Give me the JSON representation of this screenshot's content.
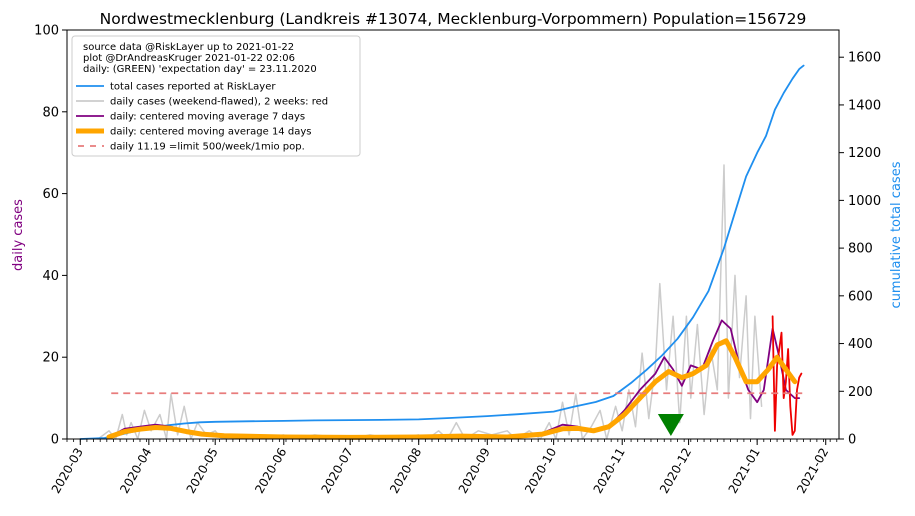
{
  "chart_data": {
    "type": "line",
    "title": "Nordwestmecklenburg (Landkreis #13074, Mecklenburg-Vorpommern) Population=156729",
    "ylabel_left": "daily cases",
    "ylabel_right": "cumulative total cases",
    "ylim_left": [
      0,
      100
    ],
    "ylim_right": [
      0,
      1714
    ],
    "yticks_left": [
      0,
      20,
      40,
      60,
      80,
      100
    ],
    "yticks_right": [
      0,
      200,
      400,
      600,
      800,
      1000,
      1200,
      1400,
      1600
    ],
    "x_tick_labels": [
      "2020-03",
      "2020-04",
      "2020-05",
      "2020-06",
      "2020-07",
      "2020-08",
      "2020-09",
      "2020-10",
      "2020-11",
      "2020-12",
      "2021-01",
      "2021-02"
    ],
    "x_tick_dates": [
      "2020-03-01",
      "2020-04-01",
      "2020-05-01",
      "2020-06-01",
      "2020-07-01",
      "2020-08-01",
      "2020-09-01",
      "2020-10-01",
      "2020-11-01",
      "2020-12-01",
      "2021-01-01",
      "2021-02-01"
    ],
    "xlim": [
      "2020-02-24",
      "2021-02-07"
    ],
    "legend_position": "top-left",
    "legend_info": [
      "source data @RiskLayer up to 2021-01-22",
      "plot @DrAndreasKruger 2021-01-22 02:06",
      "daily: (GREEN) 'expectation day' = 23.11.2020"
    ],
    "expectation_day": "2020-11-23",
    "limit_value": 11.19,
    "limit_range": [
      "2020-03-15",
      "2021-01-22"
    ],
    "series": [
      {
        "name": "total cases reported at RiskLayer",
        "axis": "right",
        "color": "#1f8fef",
        "width": 1.8,
        "points": [
          [
            "2020-03-01",
            0
          ],
          [
            "2020-03-12",
            4
          ],
          [
            "2020-03-20",
            20
          ],
          [
            "2020-03-27",
            35
          ],
          [
            "2020-04-03",
            48
          ],
          [
            "2020-04-10",
            58
          ],
          [
            "2020-04-17",
            65
          ],
          [
            "2020-04-24",
            70
          ],
          [
            "2020-05-01",
            72
          ],
          [
            "2020-05-15",
            74
          ],
          [
            "2020-06-01",
            76
          ],
          [
            "2020-06-15",
            78
          ],
          [
            "2020-07-01",
            79
          ],
          [
            "2020-07-15",
            80
          ],
          [
            "2020-08-01",
            82
          ],
          [
            "2020-08-15",
            88
          ],
          [
            "2020-09-01",
            96
          ],
          [
            "2020-09-15",
            104
          ],
          [
            "2020-10-01",
            115
          ],
          [
            "2020-10-10",
            135
          ],
          [
            "2020-10-20",
            155
          ],
          [
            "2020-10-28",
            180
          ],
          [
            "2020-11-05",
            235
          ],
          [
            "2020-11-12",
            290
          ],
          [
            "2020-11-19",
            350
          ],
          [
            "2020-11-26",
            420
          ],
          [
            "2020-12-03",
            510
          ],
          [
            "2020-12-10",
            620
          ],
          [
            "2020-12-17",
            800
          ],
          [
            "2020-12-22",
            950
          ],
          [
            "2020-12-27",
            1100
          ],
          [
            "2021-01-01",
            1200
          ],
          [
            "2021-01-05",
            1270
          ],
          [
            "2021-01-09",
            1380
          ],
          [
            "2021-01-13",
            1450
          ],
          [
            "2021-01-17",
            1510
          ],
          [
            "2021-01-20",
            1550
          ],
          [
            "2021-01-22",
            1565
          ]
        ]
      },
      {
        "name": "daily cases (weekend-flawed), 2 weeks: red",
        "axis": "left",
        "color": "#cccccc",
        "width": 1.5,
        "points": [
          [
            "2020-03-09",
            0
          ],
          [
            "2020-03-14",
            2
          ],
          [
            "2020-03-17",
            0
          ],
          [
            "2020-03-20",
            6
          ],
          [
            "2020-03-22",
            1
          ],
          [
            "2020-03-24",
            4
          ],
          [
            "2020-03-27",
            0
          ],
          [
            "2020-03-30",
            7
          ],
          [
            "2020-04-02",
            2
          ],
          [
            "2020-04-06",
            6
          ],
          [
            "2020-04-09",
            0
          ],
          [
            "2020-04-11",
            11
          ],
          [
            "2020-04-14",
            1
          ],
          [
            "2020-04-17",
            8
          ],
          [
            "2020-04-20",
            0
          ],
          [
            "2020-04-23",
            4
          ],
          [
            "2020-04-27",
            1
          ],
          [
            "2020-05-01",
            2
          ],
          [
            "2020-05-04",
            0
          ],
          [
            "2020-05-10",
            1
          ],
          [
            "2020-05-20",
            0
          ],
          [
            "2020-06-01",
            1
          ],
          [
            "2020-06-05",
            0
          ],
          [
            "2020-06-15",
            1
          ],
          [
            "2020-07-01",
            0
          ],
          [
            "2020-07-10",
            1
          ],
          [
            "2020-07-20",
            0
          ],
          [
            "2020-08-01",
            1
          ],
          [
            "2020-08-05",
            0
          ],
          [
            "2020-08-10",
            2
          ],
          [
            "2020-08-14",
            0
          ],
          [
            "2020-08-18",
            4
          ],
          [
            "2020-08-22",
            0
          ],
          [
            "2020-08-28",
            2
          ],
          [
            "2020-09-03",
            1
          ],
          [
            "2020-09-10",
            2
          ],
          [
            "2020-09-14",
            0
          ],
          [
            "2020-09-20",
            2
          ],
          [
            "2020-09-25",
            0
          ],
          [
            "2020-09-29",
            4
          ],
          [
            "2020-10-02",
            0
          ],
          [
            "2020-10-05",
            9
          ],
          [
            "2020-10-08",
            1
          ],
          [
            "2020-10-11",
            11
          ],
          [
            "2020-10-14",
            0
          ],
          [
            "2020-10-18",
            3
          ],
          [
            "2020-10-22",
            7
          ],
          [
            "2020-10-25",
            0
          ],
          [
            "2020-10-29",
            8
          ],
          [
            "2020-11-01",
            2
          ],
          [
            "2020-11-04",
            12
          ],
          [
            "2020-11-07",
            3
          ],
          [
            "2020-11-10",
            21
          ],
          [
            "2020-11-13",
            5
          ],
          [
            "2020-11-16",
            18
          ],
          [
            "2020-11-18",
            38
          ],
          [
            "2020-11-21",
            12
          ],
          [
            "2020-11-24",
            30
          ],
          [
            "2020-11-27",
            4
          ],
          [
            "2020-11-30",
            30
          ],
          [
            "2020-12-02",
            10
          ],
          [
            "2020-12-05",
            28
          ],
          [
            "2020-12-08",
            6
          ],
          [
            "2020-12-11",
            22
          ],
          [
            "2020-12-14",
            12
          ],
          [
            "2020-12-17",
            67
          ],
          [
            "2020-12-19",
            10
          ],
          [
            "2020-12-22",
            40
          ],
          [
            "2020-12-24",
            15
          ],
          [
            "2020-12-27",
            35
          ],
          [
            "2020-12-29",
            5
          ],
          [
            "2020-12-31",
            30
          ],
          [
            "2021-01-03",
            8
          ]
        ]
      },
      {
        "name": "daily cases last 2 weeks",
        "axis": "left",
        "color": "#ee0000",
        "width": 1.8,
        "points": [
          [
            "2021-01-08",
            30
          ],
          [
            "2021-01-09",
            2
          ],
          [
            "2021-01-10",
            18
          ],
          [
            "2021-01-11",
            22
          ],
          [
            "2021-01-12",
            26
          ],
          [
            "2021-01-13",
            10
          ],
          [
            "2021-01-14",
            14
          ],
          [
            "2021-01-15",
            22
          ],
          [
            "2021-01-16",
            8
          ],
          [
            "2021-01-17",
            1
          ],
          [
            "2021-01-18",
            2
          ],
          [
            "2021-01-19",
            12
          ],
          [
            "2021-01-20",
            15
          ],
          [
            "2021-01-21",
            16
          ]
        ]
      },
      {
        "name": "daily: centered moving average 7 days",
        "axis": "left",
        "color": "#800080",
        "width": 1.8,
        "points": [
          [
            "2020-03-14",
            0.5
          ],
          [
            "2020-03-21",
            2.5
          ],
          [
            "2020-03-28",
            3
          ],
          [
            "2020-04-04",
            3.5
          ],
          [
            "2020-04-11",
            3
          ],
          [
            "2020-04-18",
            2
          ],
          [
            "2020-04-25",
            1.5
          ],
          [
            "2020-05-02",
            1
          ],
          [
            "2020-05-15",
            0.8
          ],
          [
            "2020-06-01",
            0.6
          ],
          [
            "2020-07-01",
            0.5
          ],
          [
            "2020-08-01",
            0.5
          ],
          [
            "2020-08-15",
            0.8
          ],
          [
            "2020-09-01",
            0.6
          ],
          [
            "2020-09-15",
            0.5
          ],
          [
            "2020-09-26",
            1.5
          ],
          [
            "2020-10-05",
            3.5
          ],
          [
            "2020-10-12",
            3
          ],
          [
            "2020-10-19",
            2
          ],
          [
            "2020-10-26",
            3
          ],
          [
            "2020-11-02",
            7
          ],
          [
            "2020-11-09",
            12
          ],
          [
            "2020-11-16",
            16
          ],
          [
            "2020-11-20",
            20
          ],
          [
            "2020-11-24",
            17
          ],
          [
            "2020-11-28",
            13
          ],
          [
            "2020-12-02",
            18
          ],
          [
            "2020-12-07",
            17
          ],
          [
            "2020-12-12",
            24
          ],
          [
            "2020-12-16",
            29
          ],
          [
            "2020-12-20",
            27
          ],
          [
            "2020-12-24",
            18
          ],
          [
            "2020-12-28",
            12
          ],
          [
            "2021-01-01",
            9
          ],
          [
            "2021-01-04",
            12
          ],
          [
            "2021-01-08",
            27
          ],
          [
            "2021-01-11",
            20
          ],
          [
            "2021-01-14",
            12
          ],
          [
            "2021-01-18",
            10
          ],
          [
            "2021-01-20",
            10
          ]
        ]
      },
      {
        "name": "daily: centered moving average 14 days",
        "axis": "left",
        "color": "#ffa500",
        "width": 5,
        "points": [
          [
            "2020-03-14",
            0.5
          ],
          [
            "2020-03-21",
            1.8
          ],
          [
            "2020-03-28",
            2.4
          ],
          [
            "2020-04-04",
            2.8
          ],
          [
            "2020-04-11",
            2.6
          ],
          [
            "2020-04-18",
            1.8
          ],
          [
            "2020-04-25",
            1.2
          ],
          [
            "2020-05-05",
            0.8
          ],
          [
            "2020-06-01",
            0.5
          ],
          [
            "2020-07-01",
            0.4
          ],
          [
            "2020-08-01",
            0.5
          ],
          [
            "2020-08-20",
            0.7
          ],
          [
            "2020-09-10",
            0.5
          ],
          [
            "2020-09-26",
            1.2
          ],
          [
            "2020-10-05",
            2.5
          ],
          [
            "2020-10-12",
            2.6
          ],
          [
            "2020-10-19",
            2
          ],
          [
            "2020-10-26",
            3
          ],
          [
            "2020-11-02",
            6
          ],
          [
            "2020-11-09",
            10
          ],
          [
            "2020-11-16",
            14
          ],
          [
            "2020-11-22",
            16.5
          ],
          [
            "2020-11-28",
            15
          ],
          [
            "2020-12-03",
            16
          ],
          [
            "2020-12-09",
            18
          ],
          [
            "2020-12-14",
            23
          ],
          [
            "2020-12-18",
            24
          ],
          [
            "2020-12-22",
            20
          ],
          [
            "2020-12-27",
            14
          ],
          [
            "2021-01-01",
            14
          ],
          [
            "2021-01-06",
            17
          ],
          [
            "2021-01-10",
            20
          ],
          [
            "2021-01-14",
            17
          ],
          [
            "2021-01-18",
            14
          ]
        ]
      }
    ],
    "legend": [
      {
        "label": "total cases reported at RiskLayer",
        "color": "#1f8fef",
        "style": "line"
      },
      {
        "label": "daily cases (weekend-flawed), 2 weeks: red",
        "color": "#cccccc",
        "style": "line"
      },
      {
        "label": "daily: centered moving average 7 days",
        "color": "#800080",
        "style": "line"
      },
      {
        "label": "daily: centered moving average 14 days",
        "color": "#ffa500",
        "style": "thick"
      },
      {
        "label": "daily 11.19 =limit 500/week/1mio pop.",
        "color": "#e87c7c",
        "style": "dash"
      }
    ],
    "colors": {
      "left_axis_label": "#800080",
      "right_axis_label": "#1f8fef",
      "limit": "#e87c7c",
      "marker": "#008000"
    }
  }
}
